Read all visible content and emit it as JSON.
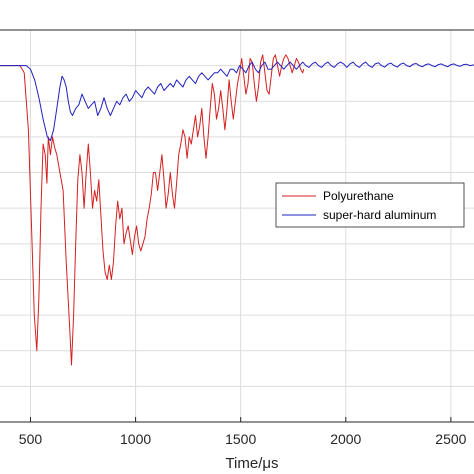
{
  "chart_data": {
    "type": "line",
    "title": "",
    "xlabel": "Time/μs",
    "ylabel": "",
    "xlim": [
      355,
      2610
    ],
    "ylim": [
      -1.0,
      0.1
    ],
    "xticks": [
      500,
      1000,
      1500,
      2000,
      2500
    ],
    "xtick_labels": [
      "500",
      "1000",
      "1500",
      "2000",
      "2500"
    ],
    "yticks": [
      -0.9,
      -0.8,
      -0.7,
      -0.6,
      -0.5,
      -0.4,
      -0.3,
      -0.2,
      -0.1,
      0
    ],
    "grid": true,
    "legend_position": "right",
    "series": [
      {
        "name": "Polyurethane",
        "color": "#d42020",
        "points": [
          [
            355,
            0
          ],
          [
            450,
            0
          ],
          [
            470,
            -0.02
          ],
          [
            490,
            -0.18
          ],
          [
            505,
            -0.45
          ],
          [
            518,
            -0.7
          ],
          [
            530,
            -0.8
          ],
          [
            540,
            -0.65
          ],
          [
            550,
            -0.4
          ],
          [
            560,
            -0.22
          ],
          [
            570,
            -0.25
          ],
          [
            578,
            -0.33
          ],
          [
            585,
            -0.2
          ],
          [
            595,
            -0.25
          ],
          [
            605,
            -0.2
          ],
          [
            615,
            -0.23
          ],
          [
            625,
            -0.25
          ],
          [
            640,
            -0.3
          ],
          [
            655,
            -0.35
          ],
          [
            670,
            -0.55
          ],
          [
            685,
            -0.72
          ],
          [
            695,
            -0.84
          ],
          [
            705,
            -0.7
          ],
          [
            715,
            -0.5
          ],
          [
            725,
            -0.32
          ],
          [
            735,
            -0.25
          ],
          [
            745,
            -0.3
          ],
          [
            755,
            -0.4
          ],
          [
            765,
            -0.3
          ],
          [
            775,
            -0.22
          ],
          [
            785,
            -0.3
          ],
          [
            795,
            -0.4
          ],
          [
            805,
            -0.35
          ],
          [
            815,
            -0.38
          ],
          [
            825,
            -0.32
          ],
          [
            835,
            -0.42
          ],
          [
            845,
            -0.52
          ],
          [
            855,
            -0.58
          ],
          [
            865,
            -0.6
          ],
          [
            875,
            -0.56
          ],
          [
            885,
            -0.6
          ],
          [
            895,
            -0.55
          ],
          [
            905,
            -0.45
          ],
          [
            915,
            -0.38
          ],
          [
            925,
            -0.43
          ],
          [
            935,
            -0.4
          ],
          [
            945,
            -0.5
          ],
          [
            955,
            -0.47
          ],
          [
            965,
            -0.45
          ],
          [
            975,
            -0.49
          ],
          [
            985,
            -0.53
          ],
          [
            995,
            -0.48
          ],
          [
            1005,
            -0.45
          ],
          [
            1015,
            -0.5
          ],
          [
            1025,
            -0.52
          ],
          [
            1035,
            -0.5
          ],
          [
            1045,
            -0.48
          ],
          [
            1055,
            -0.43
          ],
          [
            1065,
            -0.4
          ],
          [
            1075,
            -0.36
          ],
          [
            1085,
            -0.3
          ],
          [
            1095,
            -0.3
          ],
          [
            1105,
            -0.35
          ],
          [
            1115,
            -0.3
          ],
          [
            1125,
            -0.25
          ],
          [
            1135,
            -0.32
          ],
          [
            1145,
            -0.4
          ],
          [
            1155,
            -0.36
          ],
          [
            1165,
            -0.3
          ],
          [
            1175,
            -0.36
          ],
          [
            1185,
            -0.4
          ],
          [
            1195,
            -0.33
          ],
          [
            1205,
            -0.25
          ],
          [
            1215,
            -0.22
          ],
          [
            1225,
            -0.18
          ],
          [
            1235,
            -0.2
          ],
          [
            1245,
            -0.26
          ],
          [
            1255,
            -0.2
          ],
          [
            1265,
            -0.22
          ],
          [
            1275,
            -0.18
          ],
          [
            1285,
            -0.14
          ],
          [
            1295,
            -0.2
          ],
          [
            1305,
            -0.17
          ],
          [
            1315,
            -0.12
          ],
          [
            1325,
            -0.2
          ],
          [
            1335,
            -0.26
          ],
          [
            1345,
            -0.2
          ],
          [
            1355,
            -0.12
          ],
          [
            1365,
            -0.05
          ],
          [
            1375,
            -0.08
          ],
          [
            1385,
            -0.15
          ],
          [
            1395,
            -0.12
          ],
          [
            1405,
            -0.07
          ],
          [
            1415,
            -0.12
          ],
          [
            1425,
            -0.18
          ],
          [
            1435,
            -0.12
          ],
          [
            1445,
            -0.04
          ],
          [
            1455,
            -0.1
          ],
          [
            1465,
            -0.15
          ],
          [
            1475,
            -0.1
          ],
          [
            1485,
            -0.05
          ],
          [
            1495,
            -0.02
          ],
          [
            1505,
            0.02
          ],
          [
            1515,
            -0.03
          ],
          [
            1525,
            -0.08
          ],
          [
            1535,
            -0.05
          ],
          [
            1545,
            0.02
          ],
          [
            1555,
            0.01
          ],
          [
            1565,
            -0.05
          ],
          [
            1575,
            -0.1
          ],
          [
            1585,
            -0.06
          ],
          [
            1595,
            0.01
          ],
          [
            1605,
            0.03
          ],
          [
            1615,
            -0.02
          ],
          [
            1625,
            -0.07
          ],
          [
            1635,
            -0.08
          ],
          [
            1645,
            -0.03
          ],
          [
            1655,
            0.02
          ],
          [
            1665,
            0.03
          ],
          [
            1675,
            0
          ],
          [
            1685,
            -0.03
          ],
          [
            1695,
            0
          ],
          [
            1705,
            0.02
          ],
          [
            1715,
            0.03
          ],
          [
            1725,
            0.02
          ],
          [
            1735,
            0
          ],
          [
            1745,
            -0.02
          ],
          [
            1755,
            0
          ],
          [
            1765,
            0.02
          ],
          [
            1775,
            0.01
          ],
          [
            1785,
            -0.01
          ],
          [
            1795,
            -0.02
          ],
          [
            1800,
            -0.01
          ]
        ]
      },
      {
        "name": "super-hard aluminum",
        "color": "#2020c0",
        "points": [
          [
            355,
            0
          ],
          [
            450,
            0
          ],
          [
            480,
            0
          ],
          [
            500,
            -0.01
          ],
          [
            520,
            -0.04
          ],
          [
            540,
            -0.09
          ],
          [
            560,
            -0.15
          ],
          [
            580,
            -0.2
          ],
          [
            595,
            -0.21
          ],
          [
            610,
            -0.18
          ],
          [
            625,
            -0.12
          ],
          [
            640,
            -0.06
          ],
          [
            650,
            -0.03
          ],
          [
            660,
            -0.04
          ],
          [
            670,
            -0.06
          ],
          [
            680,
            -0.1
          ],
          [
            690,
            -0.13
          ],
          [
            700,
            -0.14
          ],
          [
            715,
            -0.12
          ],
          [
            730,
            -0.11
          ],
          [
            745,
            -0.08
          ],
          [
            760,
            -0.1
          ],
          [
            775,
            -0.12
          ],
          [
            790,
            -0.11
          ],
          [
            805,
            -0.1
          ],
          [
            820,
            -0.14
          ],
          [
            835,
            -0.12
          ],
          [
            850,
            -0.09
          ],
          [
            865,
            -0.12
          ],
          [
            880,
            -0.14
          ],
          [
            895,
            -0.12
          ],
          [
            910,
            -0.1
          ],
          [
            925,
            -0.11
          ],
          [
            940,
            -0.09
          ],
          [
            955,
            -0.08
          ],
          [
            970,
            -0.1
          ],
          [
            985,
            -0.09
          ],
          [
            1000,
            -0.07
          ],
          [
            1015,
            -0.08
          ],
          [
            1030,
            -0.09
          ],
          [
            1045,
            -0.07
          ],
          [
            1060,
            -0.06
          ],
          [
            1075,
            -0.07
          ],
          [
            1090,
            -0.08
          ],
          [
            1105,
            -0.06
          ],
          [
            1120,
            -0.05
          ],
          [
            1135,
            -0.07
          ],
          [
            1150,
            -0.06
          ],
          [
            1165,
            -0.05
          ],
          [
            1180,
            -0.06
          ],
          [
            1195,
            -0.04
          ],
          [
            1210,
            -0.05
          ],
          [
            1225,
            -0.06
          ],
          [
            1240,
            -0.04
          ],
          [
            1255,
            -0.03
          ],
          [
            1270,
            -0.04
          ],
          [
            1285,
            -0.05
          ],
          [
            1300,
            -0.03
          ],
          [
            1315,
            -0.02
          ],
          [
            1330,
            -0.03
          ],
          [
            1345,
            -0.04
          ],
          [
            1360,
            -0.03
          ],
          [
            1375,
            -0.02
          ],
          [
            1390,
            -0.02
          ],
          [
            1405,
            -0.01
          ],
          [
            1420,
            -0.02
          ],
          [
            1435,
            -0.03
          ],
          [
            1450,
            -0.01
          ],
          [
            1465,
            -0.01
          ],
          [
            1480,
            -0.02
          ],
          [
            1495,
            0
          ],
          [
            1510,
            -0.01
          ],
          [
            1525,
            -0.02
          ],
          [
            1540,
            0
          ],
          [
            1555,
            0.01
          ],
          [
            1570,
            -0.01
          ],
          [
            1585,
            -0.02
          ],
          [
            1600,
            0
          ],
          [
            1615,
            0.01
          ],
          [
            1630,
            -0.01
          ],
          [
            1645,
            -0.01
          ],
          [
            1660,
            0
          ],
          [
            1675,
            0.01
          ],
          [
            1690,
            0
          ],
          [
            1705,
            -0.01
          ],
          [
            1720,
            0
          ],
          [
            1735,
            0.01
          ],
          [
            1750,
            0
          ],
          [
            1765,
            -0.01
          ],
          [
            1780,
            0
          ],
          [
            1795,
            0.01
          ],
          [
            1810,
            0
          ],
          [
            1825,
            -0.005
          ],
          [
            1840,
            0.005
          ],
          [
            1855,
            0.01
          ],
          [
            1870,
            0
          ],
          [
            1885,
            -0.005
          ],
          [
            1900,
            0.005
          ],
          [
            1915,
            0.01
          ],
          [
            1930,
            0
          ],
          [
            1945,
            -0.005
          ],
          [
            1960,
            0.005
          ],
          [
            1975,
            0.01
          ],
          [
            1990,
            0.005
          ],
          [
            2005,
            -0.005
          ],
          [
            2020,
            0.005
          ],
          [
            2035,
            0.01
          ],
          [
            2050,
            0
          ],
          [
            2065,
            -0.005
          ],
          [
            2080,
            0.005
          ],
          [
            2095,
            0.01
          ],
          [
            2110,
            0
          ],
          [
            2125,
            -0.005
          ],
          [
            2140,
            0.005
          ],
          [
            2155,
            0.008
          ],
          [
            2170,
            0
          ],
          [
            2185,
            -0.004
          ],
          [
            2200,
            0.004
          ],
          [
            2215,
            0.007
          ],
          [
            2230,
            0
          ],
          [
            2245,
            -0.004
          ],
          [
            2260,
            0.004
          ],
          [
            2275,
            0.007
          ],
          [
            2290,
            0
          ],
          [
            2305,
            -0.003
          ],
          [
            2320,
            0.004
          ],
          [
            2335,
            0.006
          ],
          [
            2350,
            0
          ],
          [
            2365,
            -0.003
          ],
          [
            2380,
            0.003
          ],
          [
            2395,
            0.005
          ],
          [
            2410,
            0
          ],
          [
            2425,
            -0.003
          ],
          [
            2440,
            0.003
          ],
          [
            2455,
            0.005
          ],
          [
            2470,
            0
          ],
          [
            2485,
            -0.003
          ],
          [
            2500,
            0.003
          ],
          [
            2515,
            0.005
          ],
          [
            2530,
            0
          ],
          [
            2545,
            -0.002
          ],
          [
            2560,
            0.003
          ],
          [
            2575,
            0.004
          ],
          [
            2590,
            0
          ],
          [
            2610,
            0.002
          ]
        ]
      }
    ]
  }
}
